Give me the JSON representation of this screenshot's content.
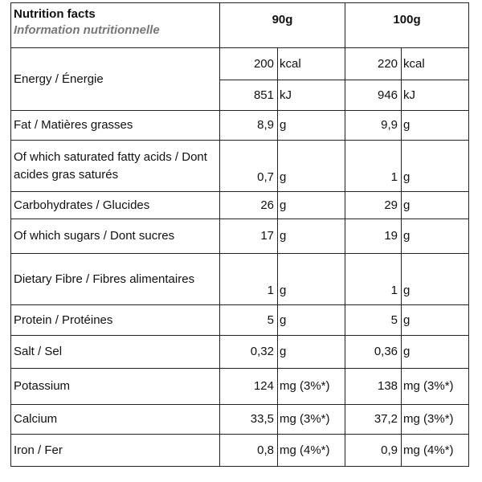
{
  "header": {
    "title": "Nutrition facts",
    "subtitle": "Information nutritionnelle",
    "col1": "90g",
    "col2": "100g"
  },
  "energy": {
    "label": "Energy / Énergie",
    "kcal": {
      "v1": "200",
      "unit1": "kcal",
      "v2": "220",
      "unit2": "kcal"
    },
    "kj": {
      "v1": "851",
      "unit1": "kJ",
      "v2": "946",
      "unit2": "kJ"
    }
  },
  "rows": [
    {
      "label": "Fat / Matières grasses",
      "v1": "8,9",
      "u1": "g",
      "v2": "9,9",
      "u2": "g"
    },
    {
      "label": "Of which saturated fatty acids / Dont acides gras saturés",
      "v1": "0,7",
      "u1": "g",
      "v2": "1",
      "u2": "g"
    },
    {
      "label": "Carbohydrates / Glucides",
      "v1": "26",
      "u1": "g",
      "v2": "29",
      "u2": "g"
    },
    {
      "label": "Of which sugars / Dont sucres",
      "v1": "17",
      "u1": "g",
      "v2": "19",
      "u2": "g"
    },
    {
      "label": "Dietary Fibre / Fibres alimentaires",
      "v1": "1",
      "u1": "g",
      "v2": "1",
      "u2": "g"
    },
    {
      "label": "Protein / Protéines",
      "v1": "5",
      "u1": "g",
      "v2": "5",
      "u2": "g"
    },
    {
      "label": "Salt / Sel",
      "v1": "0,32",
      "u1": "g",
      "v2": "0,36",
      "u2": "g"
    },
    {
      "label": "Potassium",
      "v1": "124",
      "u1": "mg (3%*)",
      "v2": "138",
      "u2": "mg (3%*)"
    },
    {
      "label": "Calcium",
      "v1": "33,5",
      "u1": "mg (3%*)",
      "v2": "37,2",
      "u2": "mg (3%*)"
    },
    {
      "label": "Iron / Fer",
      "v1": "0,8",
      "u1": "mg (4%*)",
      "v2": "0,9",
      "u2": "mg (4%*)"
    }
  ]
}
